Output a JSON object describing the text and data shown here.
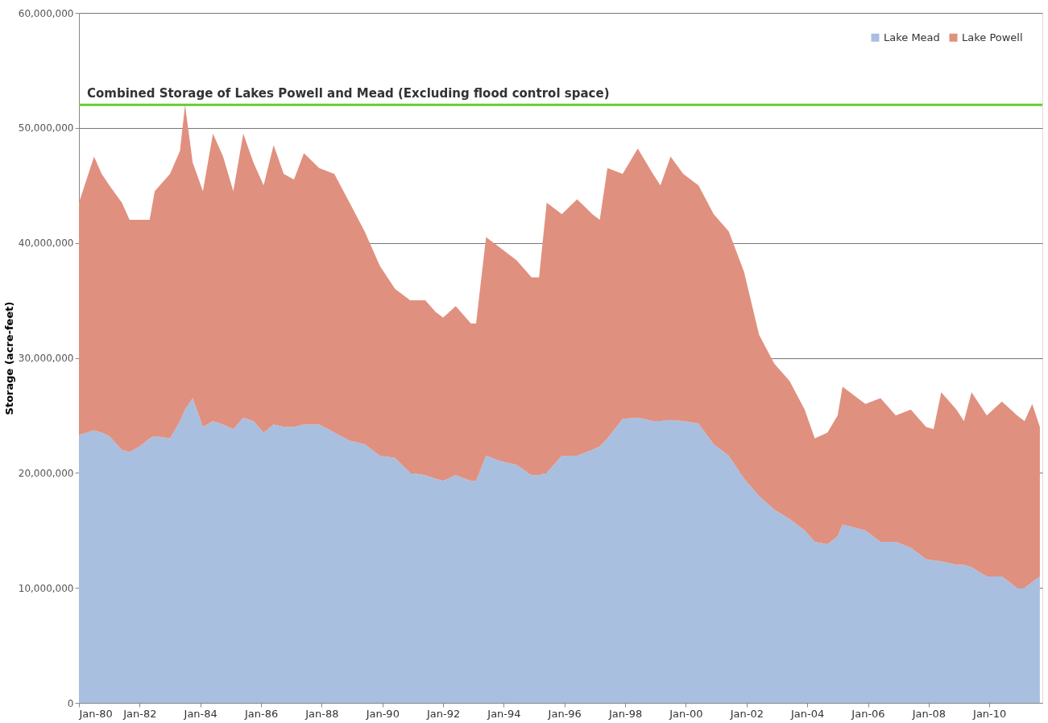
{
  "chart_data": {
    "type": "area",
    "stacked": true,
    "ylabel": "Storage (acre-feet)",
    "x": [
      "1980-01",
      "1980-07",
      "1980-10",
      "1981-01",
      "1981-06",
      "1981-09",
      "1982-01",
      "1982-05",
      "1982-07",
      "1983-01",
      "1983-05",
      "1983-07",
      "1983-10",
      "1984-02",
      "1984-06",
      "1984-10",
      "1985-02",
      "1985-06",
      "1985-10",
      "1986-02",
      "1986-06",
      "1986-10",
      "1987-02",
      "1987-06",
      "1987-12",
      "1988-06",
      "1988-12",
      "1989-06",
      "1989-12",
      "1990-06",
      "1990-12",
      "1991-06",
      "1991-10",
      "1992-01",
      "1992-06",
      "1992-12",
      "1993-02",
      "1993-06",
      "1993-12",
      "1994-06",
      "1994-12",
      "1995-03",
      "1995-06",
      "1995-12",
      "1996-06",
      "1996-12",
      "1997-03",
      "1997-06",
      "1997-12",
      "1998-06",
      "1998-12",
      "1999-03",
      "1999-07",
      "1999-12",
      "2000-06",
      "2000-12",
      "2001-06",
      "2001-12",
      "2002-06",
      "2002-12",
      "2003-06",
      "2003-12",
      "2004-04",
      "2004-09",
      "2005-01",
      "2005-03",
      "2005-12",
      "2006-06",
      "2006-12",
      "2007-06",
      "2007-12",
      "2008-03",
      "2008-06",
      "2008-12",
      "2009-03",
      "2009-06",
      "2009-12",
      "2010-06",
      "2010-12",
      "2011-03",
      "2011-06",
      "2011-09"
    ],
    "series": [
      {
        "name": "Lake Mead",
        "color": "#a9bfe0",
        "values": [
          23300000,
          23700000,
          23500000,
          23200000,
          22000000,
          21800000,
          22300000,
          23000000,
          23200000,
          23000000,
          24500000,
          25500000,
          26500000,
          24000000,
          24500000,
          24200000,
          23800000,
          24800000,
          24500000,
          23500000,
          24200000,
          24000000,
          24000000,
          24200000,
          24200000,
          23500000,
          22800000,
          22500000,
          21500000,
          21300000,
          20000000,
          19800000,
          19500000,
          19300000,
          19800000,
          19300000,
          19300000,
          21500000,
          21000000,
          20700000,
          19800000,
          19800000,
          20000000,
          21500000,
          21500000,
          22000000,
          22300000,
          23000000,
          24700000,
          24800000,
          24500000,
          24500000,
          24600000,
          24500000,
          24300000,
          22500000,
          21500000,
          19500000,
          18000000,
          16800000,
          16000000,
          15000000,
          14000000,
          13800000,
          14500000,
          15500000,
          15000000,
          14000000,
          14000000,
          13500000,
          12500000,
          12400000,
          12300000,
          12000000,
          12000000,
          11800000,
          11000000,
          11000000,
          10000000,
          10000000,
          10500000,
          11000000
        ]
      },
      {
        "name": "Lake Powell",
        "color": "#e0907f",
        "values": [
          20200000,
          23800000,
          22500000,
          21800000,
          21500000,
          20200000,
          19700000,
          19000000,
          21300000,
          23000000,
          23500000,
          26500000,
          20500000,
          20500000,
          25000000,
          23300000,
          20700000,
          24700000,
          22500000,
          21500000,
          24300000,
          22000000,
          21500000,
          23600000,
          22300000,
          22500000,
          20700000,
          18500000,
          16500000,
          14700000,
          15000000,
          15200000,
          14500000,
          14200000,
          14700000,
          13700000,
          13700000,
          19000000,
          18500000,
          17800000,
          17200000,
          17200000,
          23500000,
          21000000,
          22300000,
          20500000,
          19700000,
          23500000,
          21300000,
          23400000,
          21500000,
          20500000,
          22900000,
          21500000,
          20700000,
          20000000,
          19500000,
          18000000,
          14000000,
          12700000,
          12000000,
          10500000,
          9000000,
          9700000,
          10500000,
          12000000,
          11000000,
          12500000,
          11000000,
          12000000,
          11500000,
          11400000,
          14700000,
          13500000,
          12500000,
          15200000,
          14000000,
          15200000,
          15000000,
          14500000,
          15500000,
          13000000
        ]
      }
    ],
    "xlim": [
      "1980-01",
      "2011-10"
    ],
    "xticks": [
      {
        "value": "1980-01",
        "label": "Jan-80"
      },
      {
        "value": "1982-01",
        "label": "Jan-82"
      },
      {
        "value": "1984-01",
        "label": "Jan-84"
      },
      {
        "value": "1986-01",
        "label": "Jan-86"
      },
      {
        "value": "1988-01",
        "label": "Jan-88"
      },
      {
        "value": "1990-01",
        "label": "Jan-90"
      },
      {
        "value": "1992-01",
        "label": "Jan-92"
      },
      {
        "value": "1994-01",
        "label": "Jan-94"
      },
      {
        "value": "1996-01",
        "label": "Jan-96"
      },
      {
        "value": "1998-01",
        "label": "Jan-98"
      },
      {
        "value": "2000-01",
        "label": "Jan-00"
      },
      {
        "value": "2002-01",
        "label": "Jan-02"
      },
      {
        "value": "2004-01",
        "label": "Jan-04"
      },
      {
        "value": "2006-01",
        "label": "Jan-06"
      },
      {
        "value": "2008-01",
        "label": "Jan-08"
      },
      {
        "value": "2010-01",
        "label": "Jan-10"
      }
    ],
    "ylim": [
      0,
      60000000
    ],
    "yticks": [
      0,
      {
        "value": 10000000,
        "label": "10,000,000"
      },
      {
        "value": 20000000,
        "label": "20,000,000"
      },
      {
        "value": 30000000,
        "label": "30,000,000"
      },
      {
        "value": 40000000,
        "label": "40,000,000"
      },
      {
        "value": 50000000,
        "label": "50,000,000"
      },
      {
        "value": 60000000,
        "label": "60,000,000"
      }
    ],
    "ref_lines": [
      {
        "axis": "y",
        "value": 52000000,
        "label": "Combined Storage of Lakes Powell and Mead (Excluding flood control space)",
        "color": "#66cc33"
      }
    ],
    "grid": "y",
    "legend": "top right"
  }
}
